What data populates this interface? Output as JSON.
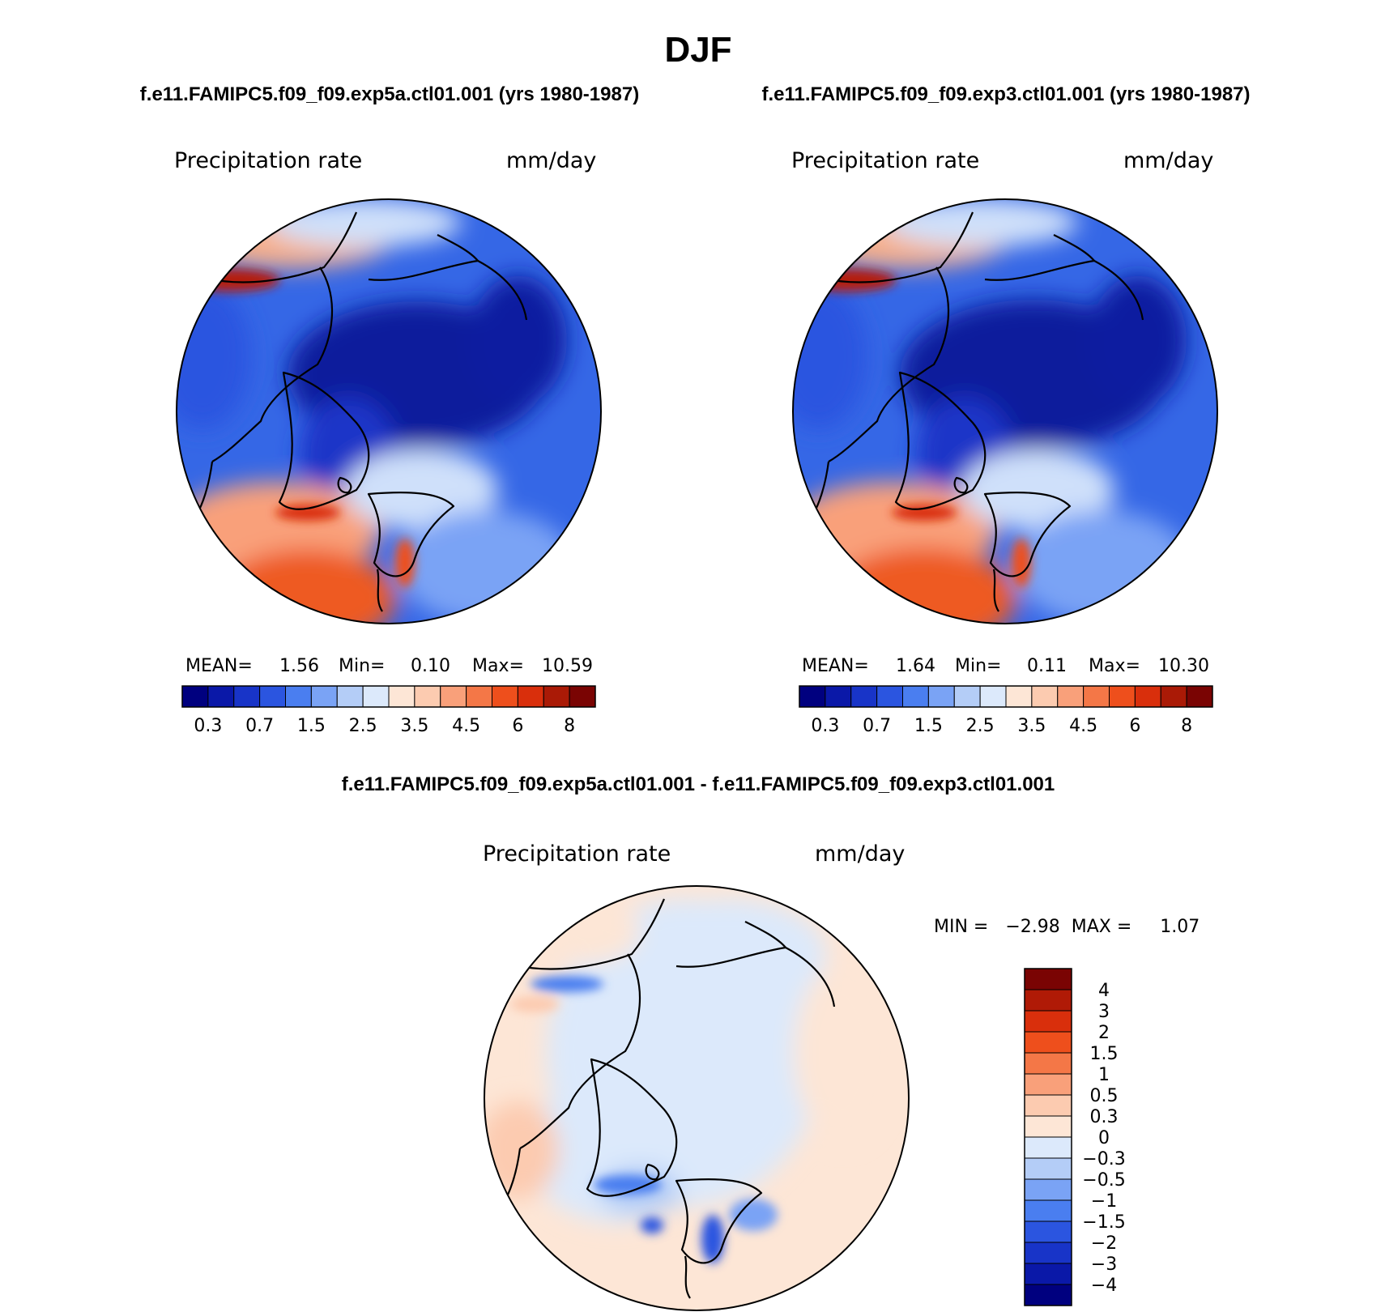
{
  "figure": {
    "title": "DJF",
    "diff_title": "f.e11.FAMIPC5.f09_f09.exp5a.ctl01.001 - f.e11.FAMIPC5.f09_f09.exp3.ctl01.001"
  },
  "panels": {
    "left": {
      "case_title": "f.e11.FAMIPC5.f09_f09.exp5a.ctl01.001 (yrs 1980-1987)",
      "var_label": "Precipitation rate",
      "units": "mm/day",
      "stats_mean_label": "MEAN=",
      "stats_mean": "1.56",
      "stats_min_label": "Min=",
      "stats_min": "0.10",
      "stats_max_label": "Max=",
      "stats_max": "10.59"
    },
    "right": {
      "case_title": "f.e11.FAMIPC5.f09_f09.exp3.ctl01.001 (yrs 1980-1987)",
      "var_label": "Precipitation rate",
      "units": "mm/day",
      "stats_mean_label": "MEAN=",
      "stats_mean": "1.64",
      "stats_min_label": "Min=",
      "stats_min": "0.11",
      "stats_max_label": "Max=",
      "stats_max": "10.30"
    },
    "diff": {
      "var_label": "Precipitation rate",
      "units": "mm/day",
      "stats_text": "MIN =   −2.98  MAX =     1.07"
    }
  },
  "chart_data": [
    {
      "type": "heatmap",
      "projection": "polar-stereographic-north",
      "title": "f.e11.FAMIPC5.f09_f09.exp5a.ctl01.001 (yrs 1980-1987)",
      "variable": "Precipitation rate",
      "units": "mm/day",
      "mean": 1.56,
      "min": 0.1,
      "max": 10.59,
      "colorbar": {
        "orientation": "horizontal",
        "levels": [
          0.2,
          0.3,
          0.5,
          0.7,
          1,
          1.5,
          2,
          2.5,
          3,
          3.5,
          4,
          4.5,
          5,
          6,
          7,
          8
        ],
        "tick_labels": [
          "0.3",
          "0.7",
          "1.5",
          "2.5",
          "3.5",
          "4.5",
          "6",
          "8"
        ],
        "colors": [
          "#00007f",
          "#0a18a8",
          "#1834c8",
          "#2b55e0",
          "#4a7ef0",
          "#7aa3f5",
          "#b4cdf7",
          "#dce9fb",
          "#fde6d6",
          "#fccbb0",
          "#f9a07a",
          "#f47747",
          "#ee4f1c",
          "#d92f0c",
          "#aa1a06",
          "#7a0403"
        ]
      }
    },
    {
      "type": "heatmap",
      "projection": "polar-stereographic-north",
      "title": "f.e11.FAMIPC5.f09_f09.exp3.ctl01.001 (yrs 1980-1987)",
      "variable": "Precipitation rate",
      "units": "mm/day",
      "mean": 1.64,
      "min": 0.11,
      "max": 10.3,
      "colorbar": {
        "orientation": "horizontal",
        "levels": [
          0.2,
          0.3,
          0.5,
          0.7,
          1,
          1.5,
          2,
          2.5,
          3,
          3.5,
          4,
          4.5,
          5,
          6,
          7,
          8
        ],
        "tick_labels": [
          "0.3",
          "0.7",
          "1.5",
          "2.5",
          "3.5",
          "4.5",
          "6",
          "8"
        ],
        "colors": [
          "#00007f",
          "#0a18a8",
          "#1834c8",
          "#2b55e0",
          "#4a7ef0",
          "#7aa3f5",
          "#b4cdf7",
          "#dce9fb",
          "#fde6d6",
          "#fccbb0",
          "#f9a07a",
          "#f47747",
          "#ee4f1c",
          "#d92f0c",
          "#aa1a06",
          "#7a0403"
        ]
      }
    },
    {
      "type": "heatmap",
      "projection": "polar-stereographic-north",
      "title": "f.e11.FAMIPC5.f09_f09.exp5a.ctl01.001 - f.e11.FAMIPC5.f09_f09.exp3.ctl01.001",
      "variable": "Precipitation rate",
      "units": "mm/day",
      "min": -2.98,
      "max": 1.07,
      "colorbar": {
        "orientation": "vertical",
        "tick_labels": [
          "4",
          "3",
          "2",
          "1.5",
          "1",
          "0.5",
          "0.3",
          "0",
          "−0.3",
          "−0.5",
          "−1",
          "−1.5",
          "−2",
          "−3",
          "−4"
        ],
        "colors_top_to_bottom": [
          "#7a0403",
          "#b01a06",
          "#d92f0c",
          "#ee4f1c",
          "#f47747",
          "#f9a07a",
          "#fccbb0",
          "#fde6d6",
          "#dce9fb",
          "#b4cdf7",
          "#7aa3f5",
          "#4a7ef0",
          "#2b55e0",
          "#1834c8",
          "#0a18a8",
          "#00007f"
        ]
      }
    }
  ]
}
